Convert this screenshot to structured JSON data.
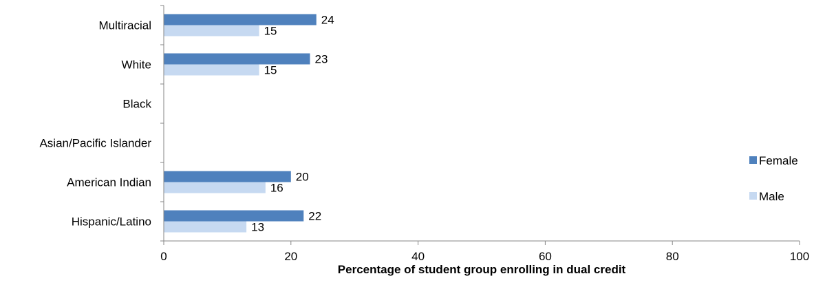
{
  "chart_data": {
    "type": "bar",
    "orientation": "horizontal",
    "categories": [
      "Multiracial",
      "White",
      "Black",
      "Asian/Pacific Islander",
      "American Indian",
      "Hispanic/Latino"
    ],
    "series": [
      {
        "name": "Female",
        "color": "#4f81bd",
        "values": [
          24,
          23,
          null,
          null,
          20,
          22
        ]
      },
      {
        "name": "Male",
        "color": "#c6d9f1",
        "values": [
          15,
          15,
          null,
          null,
          16,
          13
        ]
      }
    ],
    "xlabel": "Percentage of student group enrolling in dual credit",
    "ylabel": "",
    "xlim": [
      0,
      100
    ],
    "xticks": [
      0,
      20,
      40,
      60,
      80,
      100
    ],
    "grid": false,
    "legend_position": "right",
    "data_labels": true
  }
}
